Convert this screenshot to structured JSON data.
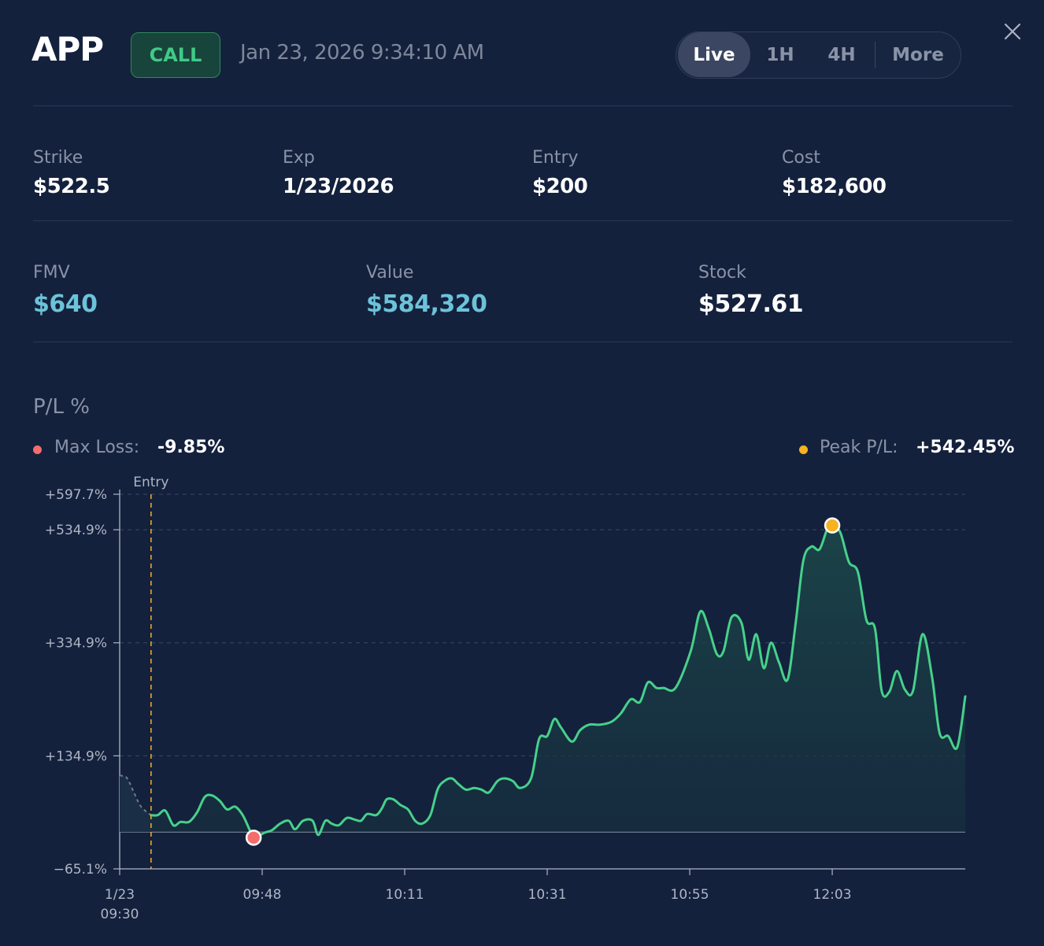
{
  "header": {
    "ticker": "APP",
    "badge": "CALL",
    "timestamp": "Jan 23, 2026 9:34:10 AM",
    "tabs": [
      {
        "label": "Live",
        "active": true
      },
      {
        "label": "1H",
        "active": false
      },
      {
        "label": "4H",
        "active": false
      },
      {
        "label": "More",
        "active": false
      }
    ],
    "close_icon": "close-icon"
  },
  "stats_row1": [
    {
      "label": "Strike",
      "value": "$522.5"
    },
    {
      "label": "Exp",
      "value": "1/23/2026"
    },
    {
      "label": "Entry",
      "value": "$200"
    },
    {
      "label": "Cost",
      "value": "$182,600"
    }
  ],
  "stats_row2": [
    {
      "label": "FMV",
      "value": "$640"
    },
    {
      "label": "Value",
      "value": "$584,320"
    },
    {
      "label": "Stock",
      "value": "$527.61"
    }
  ],
  "pl": {
    "title": "P/L %",
    "max_loss_label": "Max Loss:",
    "max_loss_value": "-9.85%",
    "peak_label": "Peak P/L:",
    "peak_value": "+542.45%"
  },
  "colors": {
    "background": "#14213d",
    "line": "#46d18a",
    "loss_dot": "#f36d6d",
    "peak_dot": "#f5b320",
    "entry_line": "#e7a92b",
    "accent_cyan": "#6cc3d9"
  },
  "chart_data": {
    "type": "line",
    "title": "P/L %",
    "xlabel": "",
    "ylabel": "P/L %",
    "ylim": [
      -65.1,
      597.7
    ],
    "y_ticks": [
      {
        "value": 597.7,
        "label": "+597.7%"
      },
      {
        "value": 534.9,
        "label": "+534.9%"
      },
      {
        "value": 334.9,
        "label": "+334.9%"
      },
      {
        "value": 134.9,
        "label": "+134.9%"
      },
      {
        "value": -65.1,
        "label": "−65.1%"
      }
    ],
    "xlim": [
      0,
      178
    ],
    "x_unit": "minutes since 09:30",
    "x_ticks": [
      {
        "value": 0,
        "label": "1/23",
        "label2": "09:30"
      },
      {
        "value": 30,
        "label": "09:48",
        "label2": ""
      },
      {
        "value": 60,
        "label": "10:11",
        "label2": ""
      },
      {
        "value": 90,
        "label": "10:31",
        "label2": ""
      },
      {
        "value": 120,
        "label": "10:55",
        "label2": ""
      },
      {
        "value": 150,
        "label": "12:03",
        "label2": ""
      }
    ],
    "baseline": 0,
    "entry": {
      "x": 6.6,
      "label": "Entry"
    },
    "max_loss_point": {
      "x": 28.2,
      "y": -9.85
    },
    "peak_point": {
      "x": 150.0,
      "y": 542.45
    },
    "pre_entry_series": {
      "x": [
        0,
        1.5,
        3.0,
        4.5,
        6.6
      ],
      "y": [
        100,
        96,
        70,
        45,
        30
      ]
    },
    "series": [
      {
        "name": "P/L %",
        "x": [
          6.6,
          8.0,
          9.6,
          11.3,
          12.8,
          14.6,
          16.3,
          17.9,
          19.4,
          21.1,
          22.6,
          24.3,
          25.9,
          27.3,
          28.2,
          30.5,
          32.0,
          33.8,
          35.6,
          36.9,
          38.6,
          40.6,
          41.8,
          43.3,
          44.6,
          46.1,
          47.8,
          49.5,
          50.8,
          52.1,
          54.0,
          55.2,
          56.2,
          57.6,
          59.1,
          60.7,
          62.2,
          63.7,
          65.4,
          66.9,
          68.3,
          69.9,
          71.3,
          72.9,
          74.6,
          76.2,
          77.7,
          79.5,
          81.0,
          82.8,
          84.3,
          86.6,
          88.3,
          90.0,
          91.5,
          92.9,
          95.2,
          96.9,
          98.8,
          101.1,
          103.5,
          105.5,
          107.6,
          109.5,
          111.2,
          113.0,
          114.5,
          117.0,
          120.2,
          122.2,
          124.0,
          125.7,
          127.1,
          128.8,
          130.9,
          132.4,
          134.0,
          135.6,
          137.1,
          138.8,
          140.6,
          142.3,
          143.9,
          145.6,
          147.3,
          148.9,
          150.0,
          151.7,
          153.5,
          155.4,
          157.2,
          159.0,
          160.4,
          162.0,
          163.6,
          165.3,
          167.0,
          169.0,
          171.0,
          172.6,
          174.4,
          176.3,
          178.0
        ],
        "y": [
          30,
          30,
          38,
          12,
          18,
          18,
          35,
          62,
          65,
          55,
          40,
          45,
          30,
          5,
          -9.85,
          -1,
          3,
          15,
          20,
          5,
          20,
          20,
          -5,
          20,
          15,
          12,
          25,
          22,
          20,
          32,
          30,
          42,
          58,
          58,
          48,
          40,
          20,
          15,
          30,
          75,
          90,
          95,
          85,
          75,
          78,
          75,
          70,
          90,
          95,
          90,
          78,
          95,
          165,
          170,
          200,
          185,
          160,
          180,
          190,
          190,
          195,
          210,
          235,
          230,
          265,
          255,
          255,
          255,
          320,
          390,
          360,
          315,
          320,
          380,
          370,
          305,
          350,
          290,
          335,
          300,
          270,
          370,
          480,
          505,
          500,
          535,
          542.45,
          530,
          478,
          460,
          375,
          360,
          250,
          248,
          285,
          252,
          250,
          350,
          275,
          175,
          170,
          150,
          240
        ]
      }
    ]
  }
}
